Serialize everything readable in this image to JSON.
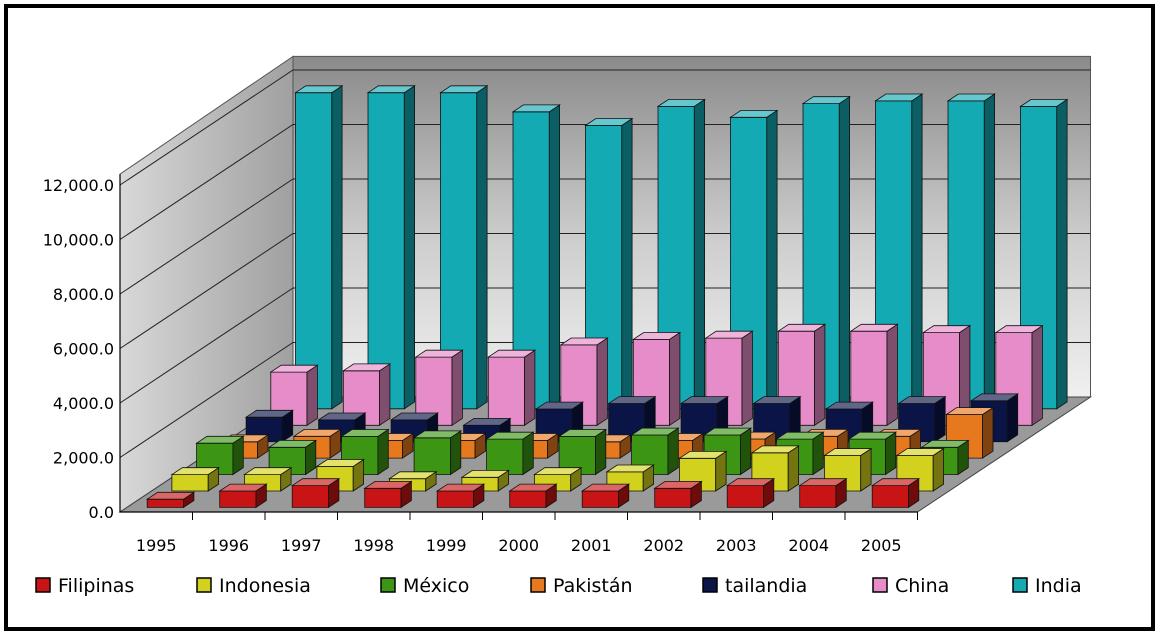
{
  "chart_data": {
    "type": "bar",
    "subtype": "3d-clustered-column",
    "title": "",
    "xlabel": "",
    "ylabel": "",
    "categories": [
      "1995",
      "1996",
      "1997",
      "1998",
      "1999",
      "2000",
      "2001",
      "2002",
      "2003",
      "2004",
      "2005"
    ],
    "ylim": [
      0,
      12000
    ],
    "y_ticks": [
      0,
      2000,
      4000,
      6000,
      8000,
      10000,
      12000
    ],
    "y_tick_labels": [
      "0.0",
      "2,000.0",
      "4,000.0",
      "6,000.0",
      "8,000.0",
      "10,000.0",
      "12,000.0"
    ],
    "grid": true,
    "legend_position": "bottom",
    "series": [
      {
        "name": "Filipinas",
        "color": "#c81414",
        "values": [
          300,
          600,
          800,
          700,
          600,
          600,
          600,
          700,
          800,
          800,
          800
        ]
      },
      {
        "name": "Indonesia",
        "color": "#d2d21e",
        "values": [
          600,
          600,
          900,
          450,
          500,
          600,
          700,
          1200,
          1400,
          1300,
          1300
        ]
      },
      {
        "name": "México",
        "color": "#3c9614",
        "values": [
          1150,
          1000,
          1400,
          1350,
          1300,
          1400,
          1450,
          1450,
          1300,
          1300,
          1000
        ]
      },
      {
        "name": "Pakistán",
        "color": "#e6781e",
        "values": [
          600,
          800,
          650,
          650,
          650,
          600,
          650,
          700,
          800,
          800,
          1600
        ]
      },
      {
        "name": "tailandia",
        "color": "#0a1446",
        "values": [
          900,
          800,
          800,
          600,
          1200,
          1400,
          1400,
          1400,
          1200,
          1400,
          1500
        ]
      },
      {
        "name": "China",
        "color": "#e68cc8",
        "values": [
          1950,
          2000,
          2500,
          2500,
          2950,
          3150,
          3200,
          3450,
          3450,
          3400,
          3400
        ]
      },
      {
        "name": "India",
        "color": "#14aab4",
        "values": [
          11600,
          11600,
          11600,
          10900,
          10400,
          11100,
          10700,
          11200,
          11300,
          11300,
          11100
        ]
      }
    ]
  }
}
